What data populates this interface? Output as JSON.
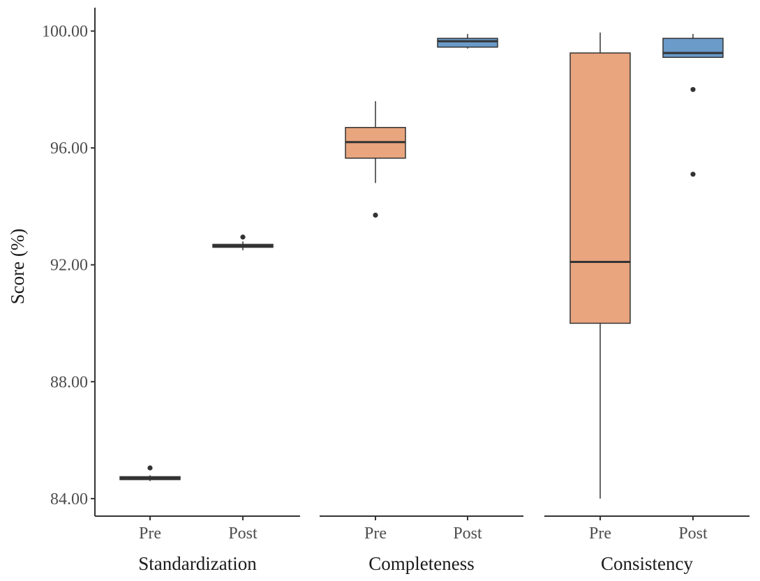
{
  "chart_data": {
    "type": "boxplot",
    "ylabel": "Score (%)",
    "ylim": [
      83.4,
      100.8
    ],
    "yticks": [
      84,
      88,
      92,
      96,
      100
    ],
    "yticklabels": [
      "84.00",
      "88.00",
      "92.00",
      "96.00",
      "100.00"
    ],
    "groups": [
      "Pre",
      "Post"
    ],
    "colors": {
      "Pre": "#e8a57e",
      "Post": "#6a9bc9",
      "stroke": "#333333"
    },
    "facets": [
      {
        "name": "Standardization",
        "boxes": [
          {
            "group": "Pre",
            "whisker_low": 84.6,
            "q1": 84.65,
            "median": 84.7,
            "q3": 84.75,
            "whisker_high": 84.8,
            "outliers": [
              85.05
            ]
          },
          {
            "group": "Post",
            "whisker_low": 92.5,
            "q1": 92.6,
            "median": 92.65,
            "q3": 92.7,
            "whisker_high": 92.8,
            "outliers": [
              92.95
            ]
          }
        ]
      },
      {
        "name": "Completeness",
        "boxes": [
          {
            "group": "Pre",
            "whisker_low": 94.8,
            "q1": 95.65,
            "median": 96.2,
            "q3": 96.7,
            "whisker_high": 97.6,
            "outliers": [
              93.7
            ]
          },
          {
            "group": "Post",
            "whisker_low": 99.4,
            "q1": 99.45,
            "median": 99.65,
            "q3": 99.75,
            "whisker_high": 99.9,
            "outliers": []
          }
        ]
      },
      {
        "name": "Consistency",
        "boxes": [
          {
            "group": "Pre",
            "whisker_low": 84.0,
            "q1": 90.0,
            "median": 92.1,
            "q3": 99.25,
            "whisker_high": 99.95,
            "outliers": []
          },
          {
            "group": "Post",
            "whisker_low": 99.1,
            "q1": 99.1,
            "median": 99.25,
            "q3": 99.75,
            "whisker_high": 99.9,
            "outliers": [
              98.0,
              95.1
            ]
          }
        ]
      }
    ]
  }
}
